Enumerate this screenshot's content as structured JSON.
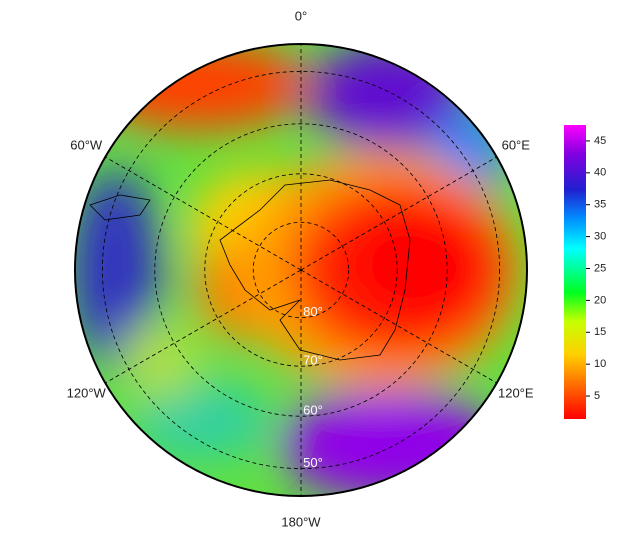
{
  "chart_data": {
    "type": "polar-map",
    "meridians": [
      {
        "value": 0,
        "label": "0°"
      },
      {
        "value": 60,
        "label": "60°E"
      },
      {
        "value": 120,
        "label": "120°E"
      },
      {
        "value": 180,
        "label": "180°W"
      },
      {
        "value": -120,
        "label": "120°W"
      },
      {
        "value": -60,
        "label": "60°W"
      }
    ],
    "parallels": [
      {
        "value": -80,
        "label": "80°"
      },
      {
        "value": -70,
        "label": "70°"
      },
      {
        "value": -60,
        "label": "60°"
      },
      {
        "value": -50,
        "label": "50°"
      }
    ],
    "boundary_lat": -45,
    "colorbar": {
      "clim": [
        1.4,
        47.5
      ],
      "ticks": [
        5,
        10,
        15,
        20,
        25,
        30,
        35,
        40,
        45
      ]
    }
  }
}
